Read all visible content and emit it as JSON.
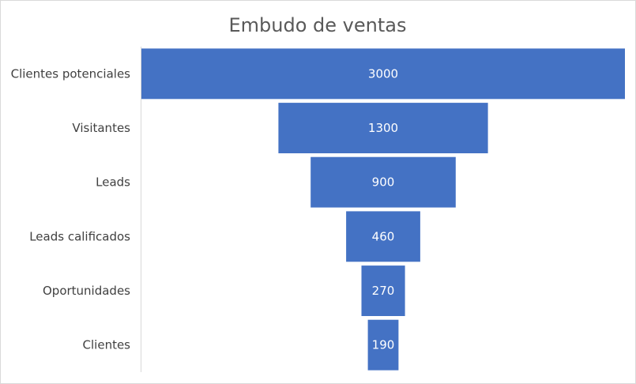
{
  "chart_data": {
    "type": "bar",
    "subtype": "funnel",
    "title": "Embudo de ventas",
    "categories": [
      "Clientes potenciales",
      "Visitantes",
      "Leads",
      "Leads calificados",
      "Oportunidades",
      "Clientes"
    ],
    "values": [
      3000,
      1300,
      900,
      460,
      270,
      190
    ],
    "data_labels": [
      "3000",
      "1300",
      "900",
      "460",
      "270",
      "190"
    ],
    "xlabel": "",
    "ylabel": "",
    "grid": false,
    "legend": "none",
    "bar_color": "#4472C4",
    "label_color": "#FFFFFF"
  }
}
